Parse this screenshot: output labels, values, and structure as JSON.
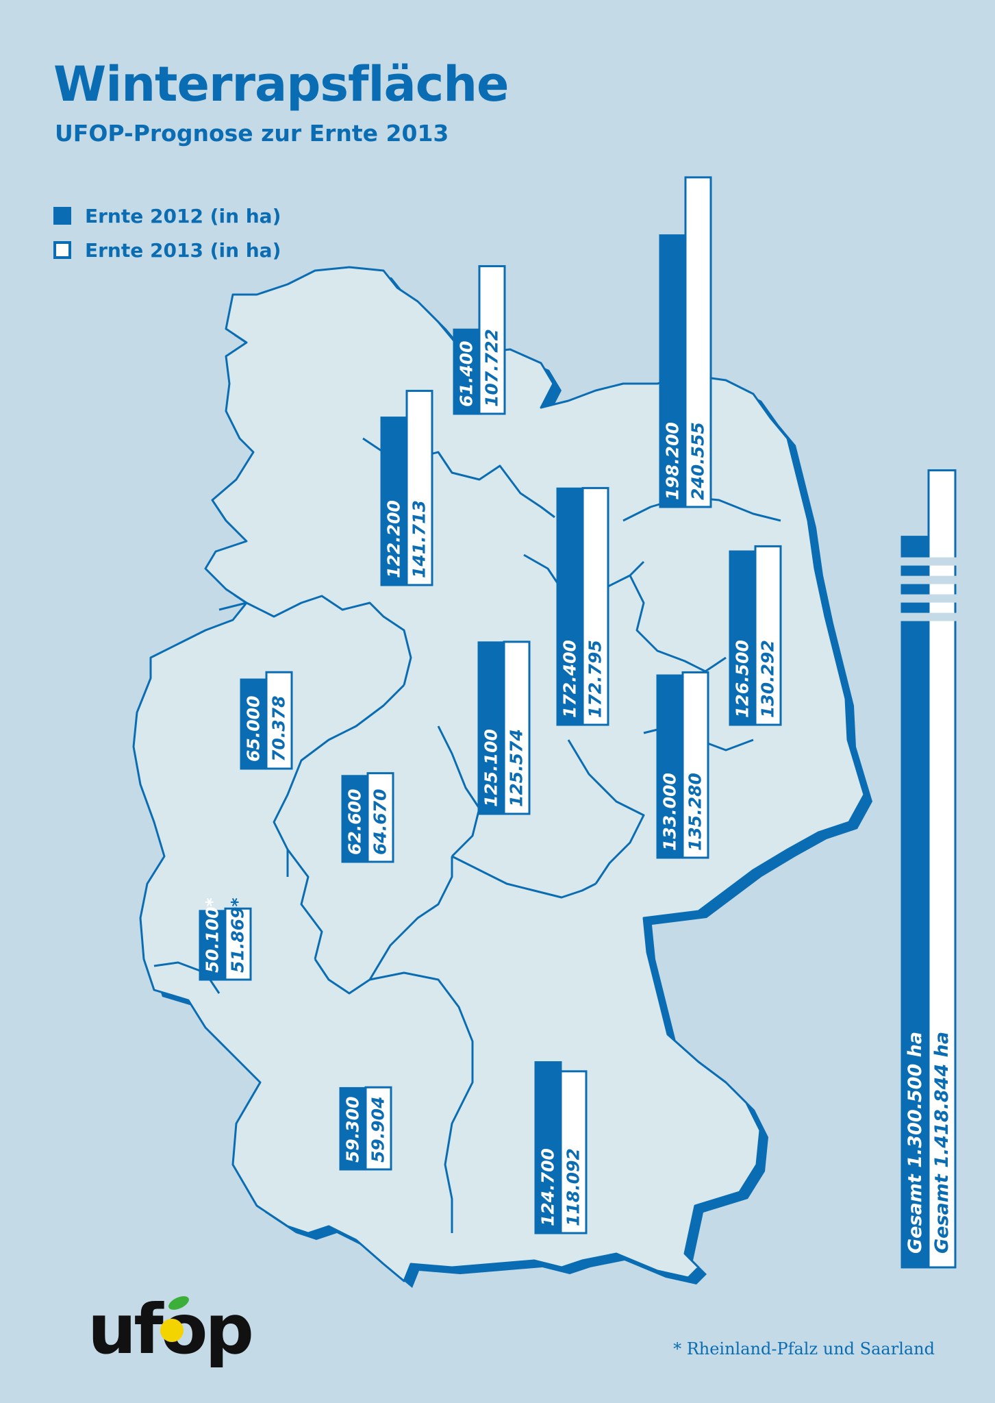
{
  "title": "Winterrapsfläche",
  "subtitle": "UFOP-Prognose zur Ernte 2013",
  "legend": {
    "2012": "Ernte 2012 (in ha)",
    "2013": "Ernte 2013 (in ha)"
  },
  "footnote": "* Rheinland-Pfalz und Saarland",
  "logo_text": "ufop",
  "colors": {
    "background": "#c4dae6",
    "map_land": "#d9e8ed",
    "map_outline": "#0a6db3",
    "bar_2012": "#0a6db3",
    "bar_2013": "#ffffff"
  },
  "chart_data": {
    "type": "bar",
    "title": "Winterrapsfläche",
    "subtitle": "UFOP-Prognose zur Ernte 2013",
    "unit": "ha",
    "series": [
      {
        "name": "Ernte 2012 (in ha)"
      },
      {
        "name": "Ernte 2013 (in ha)"
      }
    ],
    "regions": [
      {
        "v2012": 61400,
        "v2013": 107722,
        "label2012": "61.400",
        "label2013": "107.722"
      },
      {
        "v2012": 122200,
        "v2013": 141713,
        "label2012": "122.200",
        "label2013": "141.713"
      },
      {
        "v2012": 198200,
        "v2013": 240555,
        "label2012": "198.200",
        "label2013": "240.555"
      },
      {
        "v2012": 172400,
        "v2013": 172795,
        "label2012": "172.400",
        "label2013": "172.795"
      },
      {
        "v2012": 126500,
        "v2013": 130292,
        "label2012": "126.500",
        "label2013": "130.292"
      },
      {
        "v2012": 65000,
        "v2013": 70378,
        "label2012": "65.000",
        "label2013": "70.378"
      },
      {
        "v2012": 125100,
        "v2013": 125574,
        "label2012": "125.100",
        "label2013": "125.574"
      },
      {
        "v2012": 133000,
        "v2013": 135280,
        "label2012": "133.000",
        "label2013": "135.280"
      },
      {
        "v2012": 62600,
        "v2013": 64670,
        "label2012": "62.600",
        "label2013": "64.670"
      },
      {
        "v2012": 50100,
        "v2013": 51869,
        "label2012": "50.100*",
        "label2013": "51.869*"
      },
      {
        "v2012": 59300,
        "v2013": 59904,
        "label2012": "59.300",
        "label2013": "59.904"
      },
      {
        "v2012": 124700,
        "v2013": 118092,
        "label2012": "124.700",
        "label2013": "118.092"
      }
    ],
    "total": {
      "v2012": 1300500,
      "v2013": 1418844,
      "label2012": "Gesamt 1.300.500 ha",
      "label2013": "Gesamt 1.418.844 ha"
    }
  }
}
